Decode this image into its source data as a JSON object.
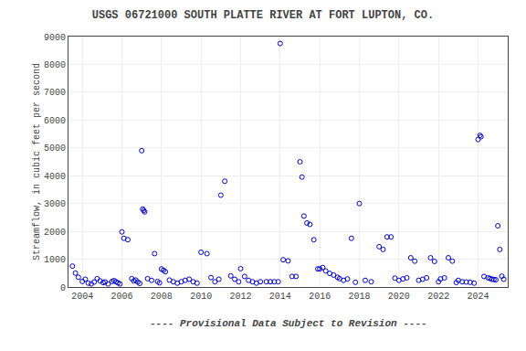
{
  "chart_data": {
    "type": "scatter",
    "title": "USGS 06721000 SOUTH PLATTE RIVER AT FORT LUPTON, CO.",
    "ylabel": "Streamflow, in cubic feet per second",
    "subtitle": "---- Provisional Data Subject to Revision ----",
    "color": "#0000cc",
    "marker": "circle-open",
    "grid": true,
    "xlim": [
      2003.3,
      2025.5
    ],
    "ylim": [
      0,
      9000
    ],
    "xticks": [
      2004,
      2006,
      2008,
      2010,
      2012,
      2014,
      2016,
      2018,
      2020,
      2022,
      2024
    ],
    "yticks": [
      0,
      1000,
      2000,
      3000,
      4000,
      5000,
      6000,
      7000,
      8000,
      9000
    ],
    "x": [
      2003.5,
      2003.65,
      2003.8,
      2004.0,
      2004.15,
      2004.3,
      2004.45,
      2004.6,
      2004.75,
      2004.9,
      2005.05,
      2005.15,
      2005.3,
      2005.5,
      2005.6,
      2005.7,
      2005.8,
      2005.9,
      2006.0,
      2006.1,
      2006.3,
      2006.5,
      2006.6,
      2006.7,
      2006.8,
      2006.9,
      2007.0,
      2007.05,
      2007.1,
      2007.15,
      2007.3,
      2007.5,
      2007.65,
      2007.8,
      2007.9,
      2008.0,
      2008.1,
      2008.2,
      2008.4,
      2008.6,
      2008.8,
      2009.0,
      2009.2,
      2009.4,
      2009.6,
      2009.8,
      2010.0,
      2010.3,
      2010.5,
      2010.7,
      2010.9,
      2011.0,
      2011.2,
      2011.5,
      2011.7,
      2011.9,
      2012.0,
      2012.2,
      2012.4,
      2012.6,
      2012.8,
      2013.0,
      2013.3,
      2013.5,
      2013.7,
      2013.9,
      2014.0,
      2014.15,
      2014.4,
      2014.6,
      2014.8,
      2015.0,
      2015.1,
      2015.2,
      2015.35,
      2015.5,
      2015.7,
      2015.9,
      2016.0,
      2016.15,
      2016.3,
      2016.5,
      2016.7,
      2016.9,
      2017.0,
      2017.2,
      2017.4,
      2017.6,
      2017.8,
      2018.0,
      2018.3,
      2018.6,
      2019.0,
      2019.2,
      2019.4,
      2019.6,
      2019.8,
      2020.0,
      2020.2,
      2020.4,
      2020.6,
      2020.8,
      2021.0,
      2021.2,
      2021.4,
      2021.6,
      2021.8,
      2022.0,
      2022.1,
      2022.3,
      2022.5,
      2022.7,
      2022.9,
      2023.0,
      2023.2,
      2023.4,
      2023.6,
      2023.8,
      2024.0,
      2024.1,
      2024.15,
      2024.3,
      2024.5,
      2024.6,
      2024.7,
      2024.8,
      2024.9,
      2025.0,
      2025.1,
      2025.2,
      2025.3
    ],
    "values": [
      750,
      500,
      350,
      200,
      280,
      140,
      110,
      180,
      300,
      220,
      160,
      180,
      110,
      200,
      230,
      190,
      150,
      110,
      1980,
      1750,
      1700,
      300,
      220,
      250,
      180,
      130,
      4900,
      2800,
      2750,
      2700,
      300,
      240,
      1200,
      200,
      150,
      650,
      600,
      550,
      250,
      190,
      140,
      190,
      240,
      280,
      190,
      140,
      1250,
      1200,
      340,
      190,
      280,
      3300,
      3800,
      400,
      280,
      190,
      660,
      380,
      240,
      190,
      140,
      190,
      190,
      190,
      190,
      190,
      8750,
      980,
      940,
      380,
      380,
      4500,
      3950,
      2550,
      2300,
      2250,
      1700,
      650,
      650,
      700,
      580,
      490,
      430,
      350,
      300,
      240,
      290,
      1750,
      170,
      3000,
      240,
      190,
      1450,
      1350,
      1800,
      1800,
      320,
      240,
      290,
      330,
      1050,
      930,
      240,
      280,
      330,
      1050,
      920,
      190,
      290,
      330,
      1050,
      930,
      160,
      240,
      190,
      180,
      170,
      140,
      5300,
      5450,
      5400,
      380,
      330,
      310,
      280,
      270,
      260,
      2200,
      1350,
      390,
      280
    ]
  }
}
